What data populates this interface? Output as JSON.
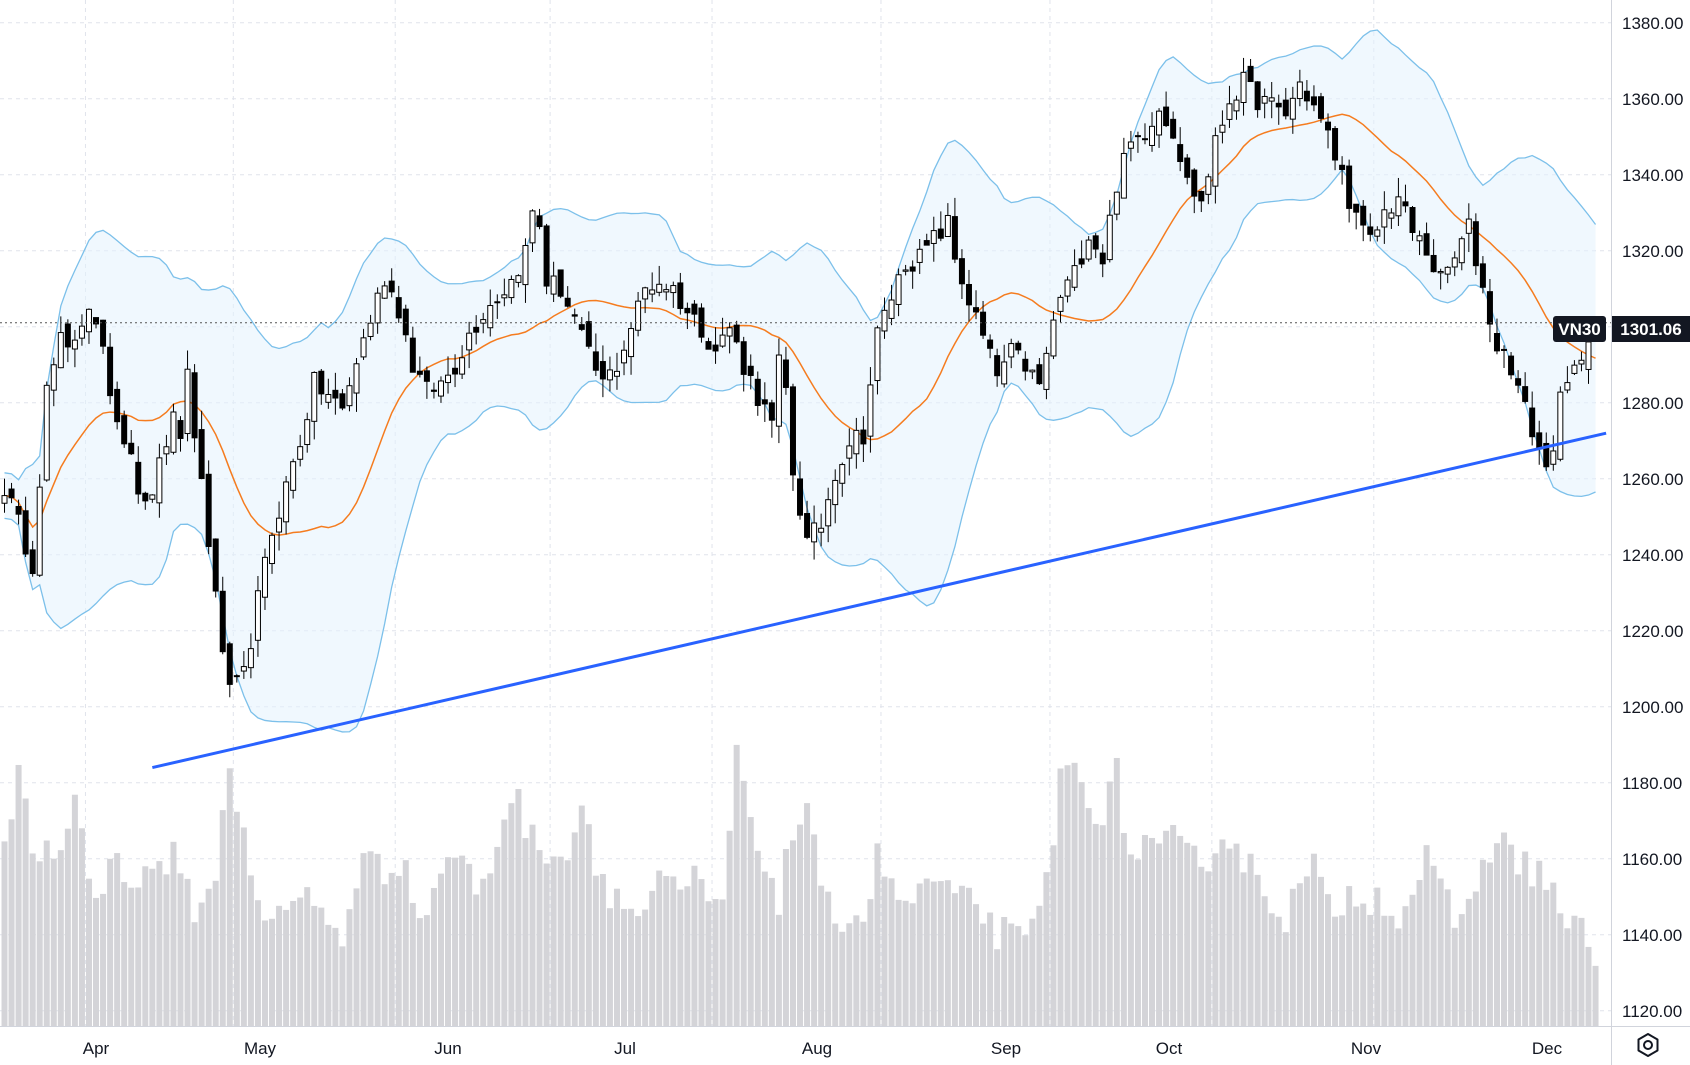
{
  "chart_data": {
    "type": "candlestick",
    "symbol": "VN30",
    "last_price": "1301.06",
    "months": [
      "Apr",
      "May",
      "Jun",
      "Jul",
      "Aug",
      "Sep",
      "Oct",
      "Nov",
      "Dec"
    ],
    "y_ticks": [
      "1380.00",
      "1360.00",
      "1340.00",
      "1320.00",
      "1300.00",
      "1280.00",
      "1260.00",
      "1240.00",
      "1220.00",
      "1200.00",
      "1180.00",
      "1160.00",
      "1140.00",
      "1120.00"
    ],
    "y_tick_values": [
      1380,
      1360,
      1340,
      1320,
      1300,
      1280,
      1260,
      1240,
      1220,
      1200,
      1180,
      1160,
      1140,
      1120
    ],
    "ylim": [
      1116,
      1386
    ],
    "price_anchors": [
      [
        0,
        1258
      ],
      [
        4,
        1238
      ],
      [
        6,
        1283
      ],
      [
        8,
        1296
      ],
      [
        9,
        1293
      ],
      [
        11,
        1302
      ],
      [
        12,
        1306
      ],
      [
        14,
        1292
      ],
      [
        16,
        1276
      ],
      [
        18,
        1268
      ],
      [
        19,
        1258
      ],
      [
        20,
        1252
      ],
      [
        22,
        1263
      ],
      [
        23,
        1270
      ],
      [
        24,
        1275
      ],
      [
        25,
        1268
      ],
      [
        26,
        1290
      ],
      [
        27,
        1270
      ],
      [
        28,
        1260
      ],
      [
        30,
        1228
      ],
      [
        32,
        1203
      ],
      [
        34,
        1208
      ],
      [
        36,
        1228
      ],
      [
        38,
        1246
      ],
      [
        40,
        1258
      ],
      [
        42,
        1270
      ],
      [
        44,
        1285
      ],
      [
        46,
        1282
      ],
      [
        48,
        1278
      ],
      [
        50,
        1291
      ],
      [
        52,
        1302
      ],
      [
        54,
        1313
      ],
      [
        56,
        1305
      ],
      [
        58,
        1290
      ],
      [
        60,
        1283
      ],
      [
        62,
        1285
      ],
      [
        64,
        1290
      ],
      [
        66,
        1298
      ],
      [
        68,
        1304
      ],
      [
        70,
        1308
      ],
      [
        72,
        1312
      ],
      [
        74,
        1320
      ],
      [
        75,
        1330
      ],
      [
        76,
        1327
      ],
      [
        77,
        1312
      ],
      [
        79,
        1310
      ],
      [
        81,
        1302
      ],
      [
        83,
        1292
      ],
      [
        85,
        1285
      ],
      [
        87,
        1290
      ],
      [
        89,
        1300
      ],
      [
        91,
        1310
      ],
      [
        93,
        1312
      ],
      [
        95,
        1310
      ],
      [
        97,
        1304
      ],
      [
        99,
        1300
      ],
      [
        101,
        1294
      ],
      [
        103,
        1300
      ],
      [
        105,
        1290
      ],
      [
        107,
        1282
      ],
      [
        109,
        1274
      ],
      [
        110,
        1290
      ],
      [
        111,
        1283
      ],
      [
        112,
        1262
      ],
      [
        114,
        1243
      ],
      [
        116,
        1248
      ],
      [
        118,
        1262
      ],
      [
        120,
        1270
      ],
      [
        122,
        1272
      ],
      [
        124,
        1298
      ],
      [
        126,
        1308
      ],
      [
        128,
        1317
      ],
      [
        130,
        1318
      ],
      [
        132,
        1323
      ],
      [
        134,
        1327
      ],
      [
        135,
        1318
      ],
      [
        137,
        1307
      ],
      [
        139,
        1297
      ],
      [
        141,
        1287
      ],
      [
        143,
        1293
      ],
      [
        145,
        1290
      ],
      [
        147,
        1284
      ],
      [
        148,
        1293
      ],
      [
        150,
        1308
      ],
      [
        152,
        1314
      ],
      [
        154,
        1325
      ],
      [
        156,
        1318
      ],
      [
        158,
        1338
      ],
      [
        160,
        1348
      ],
      [
        162,
        1352
      ],
      [
        164,
        1358
      ],
      [
        166,
        1352
      ],
      [
        168,
        1338
      ],
      [
        170,
        1333
      ],
      [
        172,
        1348
      ],
      [
        174,
        1360
      ],
      [
        176,
        1364
      ],
      [
        178,
        1360
      ],
      [
        180,
        1358
      ],
      [
        182,
        1356
      ],
      [
        184,
        1364
      ],
      [
        186,
        1358
      ],
      [
        188,
        1350
      ],
      [
        190,
        1340
      ],
      [
        192,
        1328
      ],
      [
        194,
        1322
      ],
      [
        196,
        1330
      ],
      [
        198,
        1334
      ],
      [
        200,
        1325
      ],
      [
        202,
        1320
      ],
      [
        204,
        1312
      ],
      [
        206,
        1318
      ],
      [
        208,
        1326
      ],
      [
        210,
        1310
      ],
      [
        212,
        1295
      ],
      [
        214,
        1290
      ],
      [
        216,
        1278
      ],
      [
        218,
        1268
      ],
      [
        219,
        1262
      ],
      [
        220,
        1270
      ],
      [
        221,
        1280
      ],
      [
        223,
        1288
      ],
      [
        224,
        1293
      ],
      [
        225,
        1299
      ],
      [
        226,
        1301.06
      ]
    ],
    "volume_anchors": [
      [
        0,
        1160
      ],
      [
        2,
        1182
      ],
      [
        4,
        1160
      ],
      [
        6,
        1164
      ],
      [
        8,
        1160
      ],
      [
        10,
        1178
      ],
      [
        12,
        1156
      ],
      [
        14,
        1150
      ],
      [
        16,
        1164
      ],
      [
        18,
        1153
      ],
      [
        20,
        1155
      ],
      [
        22,
        1160
      ],
      [
        24,
        1160
      ],
      [
        26,
        1150
      ],
      [
        28,
        1146
      ],
      [
        30,
        1158
      ],
      [
        32,
        1182
      ],
      [
        34,
        1168
      ],
      [
        36,
        1150
      ],
      [
        38,
        1143
      ],
      [
        40,
        1145
      ],
      [
        42,
        1151
      ],
      [
        44,
        1148
      ],
      [
        46,
        1145
      ],
      [
        48,
        1140
      ],
      [
        50,
        1150
      ],
      [
        52,
        1165
      ],
      [
        54,
        1158
      ],
      [
        56,
        1160
      ],
      [
        58,
        1150
      ],
      [
        60,
        1145
      ],
      [
        62,
        1158
      ],
      [
        64,
        1162
      ],
      [
        66,
        1155
      ],
      [
        68,
        1152
      ],
      [
        70,
        1165
      ],
      [
        72,
        1178
      ],
      [
        74,
        1170
      ],
      [
        76,
        1160
      ],
      [
        78,
        1165
      ],
      [
        80,
        1160
      ],
      [
        82,
        1176
      ],
      [
        84,
        1160
      ],
      [
        86,
        1152
      ],
      [
        88,
        1148
      ],
      [
        90,
        1145
      ],
      [
        92,
        1150
      ],
      [
        94,
        1155
      ],
      [
        96,
        1148
      ],
      [
        98,
        1155
      ],
      [
        100,
        1150
      ],
      [
        102,
        1145
      ],
      [
        104,
        1190
      ],
      [
        106,
        1166
      ],
      [
        108,
        1160
      ],
      [
        110,
        1150
      ],
      [
        112,
        1166
      ],
      [
        114,
        1176
      ],
      [
        116,
        1148
      ],
      [
        118,
        1145
      ],
      [
        120,
        1146
      ],
      [
        122,
        1145
      ],
      [
        124,
        1160
      ],
      [
        126,
        1155
      ],
      [
        128,
        1145
      ],
      [
        130,
        1153
      ],
      [
        132,
        1154
      ],
      [
        134,
        1150
      ],
      [
        136,
        1148
      ],
      [
        138,
        1150
      ],
      [
        140,
        1142
      ],
      [
        142,
        1140
      ],
      [
        144,
        1138
      ],
      [
        146,
        1140
      ],
      [
        148,
        1155
      ],
      [
        150,
        1180
      ],
      [
        152,
        1184
      ],
      [
        154,
        1178
      ],
      [
        156,
        1170
      ],
      [
        158,
        1182
      ],
      [
        160,
        1160
      ],
      [
        162,
        1165
      ],
      [
        164,
        1160
      ],
      [
        166,
        1165
      ],
      [
        168,
        1160
      ],
      [
        170,
        1158
      ],
      [
        172,
        1165
      ],
      [
        174,
        1166
      ],
      [
        176,
        1160
      ],
      [
        178,
        1155
      ],
      [
        180,
        1150
      ],
      [
        182,
        1145
      ],
      [
        184,
        1152
      ],
      [
        186,
        1158
      ],
      [
        188,
        1146
      ],
      [
        190,
        1149
      ],
      [
        192,
        1152
      ],
      [
        194,
        1150
      ],
      [
        196,
        1150
      ],
      [
        198,
        1145
      ],
      [
        200,
        1151
      ],
      [
        202,
        1160
      ],
      [
        204,
        1150
      ],
      [
        206,
        1145
      ],
      [
        208,
        1146
      ],
      [
        210,
        1160
      ],
      [
        212,
        1166
      ],
      [
        214,
        1160
      ],
      [
        216,
        1159
      ],
      [
        218,
        1156
      ],
      [
        220,
        1152
      ],
      [
        222,
        1142
      ],
      [
        224,
        1140
      ],
      [
        226,
        1136
      ]
    ],
    "trendline": {
      "start_index": 21,
      "start_value": 1184,
      "end_index": 227.5,
      "end_value": 1272,
      "color": "#2962ff"
    },
    "sma_period": 20,
    "bollinger_mult": 2,
    "colors": {
      "candle_up": "#ffffff",
      "candle_down": "#000000",
      "candle_border": "#000000",
      "sma": "#f57c1f",
      "bands": "#7cc0ea",
      "band_fill": "#e3f2fd",
      "volume": "#d4d4d8",
      "grid": "#e0e3eb",
      "crosshair": "#555555",
      "label_bg": "#131722",
      "label_text": "#ffffff"
    }
  },
  "ui": {
    "settings_icon": "gear-icon"
  }
}
